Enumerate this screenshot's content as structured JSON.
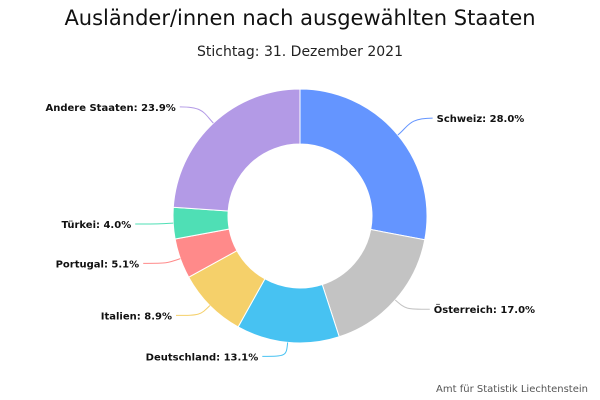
{
  "chart_data": {
    "type": "pie",
    "variant": "donut",
    "title": "Ausländer/innen nach ausgewählten Staaten",
    "subtitle": "Stichtag: 31. Dezember 2021",
    "credit": "Amt für Statistik Liechtenstein",
    "legend": "none",
    "slices": [
      {
        "label": "Schweiz",
        "value": 28.0,
        "display": "Schweiz: 28.0%",
        "color": "#6495ff"
      },
      {
        "label": "Österreich",
        "value": 17.0,
        "display": "Österreich: 17.0%",
        "color": "#c3c3c3"
      },
      {
        "label": "Deutschland",
        "value": 13.1,
        "display": "Deutschland: 13.1%",
        "color": "#47c2f2"
      },
      {
        "label": "Italien",
        "value": 8.9,
        "display": "Italien: 8.9%",
        "color": "#f5d06a"
      },
      {
        "label": "Portugal",
        "value": 5.1,
        "display": "Portugal: 5.1%",
        "color": "#ff8a8a"
      },
      {
        "label": "Türkei",
        "value": 4.0,
        "display": "Türkei: 4.0%",
        "color": "#4fdfb5"
      },
      {
        "label": "Andere Staaten",
        "value": 23.9,
        "display": "Andere Staaten: 23.9%",
        "color": "#b39ae6"
      }
    ]
  }
}
